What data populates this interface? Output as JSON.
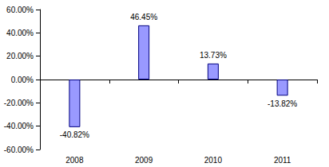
{
  "chart_data": {
    "type": "bar",
    "categories": [
      "2008",
      "2009",
      "2010",
      "2011"
    ],
    "values": [
      -40.82,
      46.45,
      13.73,
      -13.82
    ],
    "value_labels": [
      "-40.82%",
      "46.45%",
      "13.73%",
      "-13.82%"
    ],
    "color": "#9999ff",
    "ylim": [
      -60,
      60
    ],
    "yticks": [
      {
        "value": -60,
        "label": "-60.00%"
      },
      {
        "value": -40,
        "label": "-40.00%"
      },
      {
        "value": -20,
        "label": "-20.00%"
      },
      {
        "value": 0,
        "label": "0.00%"
      },
      {
        "value": 20,
        "label": "20.00%"
      },
      {
        "value": 40,
        "label": "40.00%"
      },
      {
        "value": 60,
        "label": "60.00%"
      }
    ],
    "grid": false,
    "data_labels": true
  }
}
